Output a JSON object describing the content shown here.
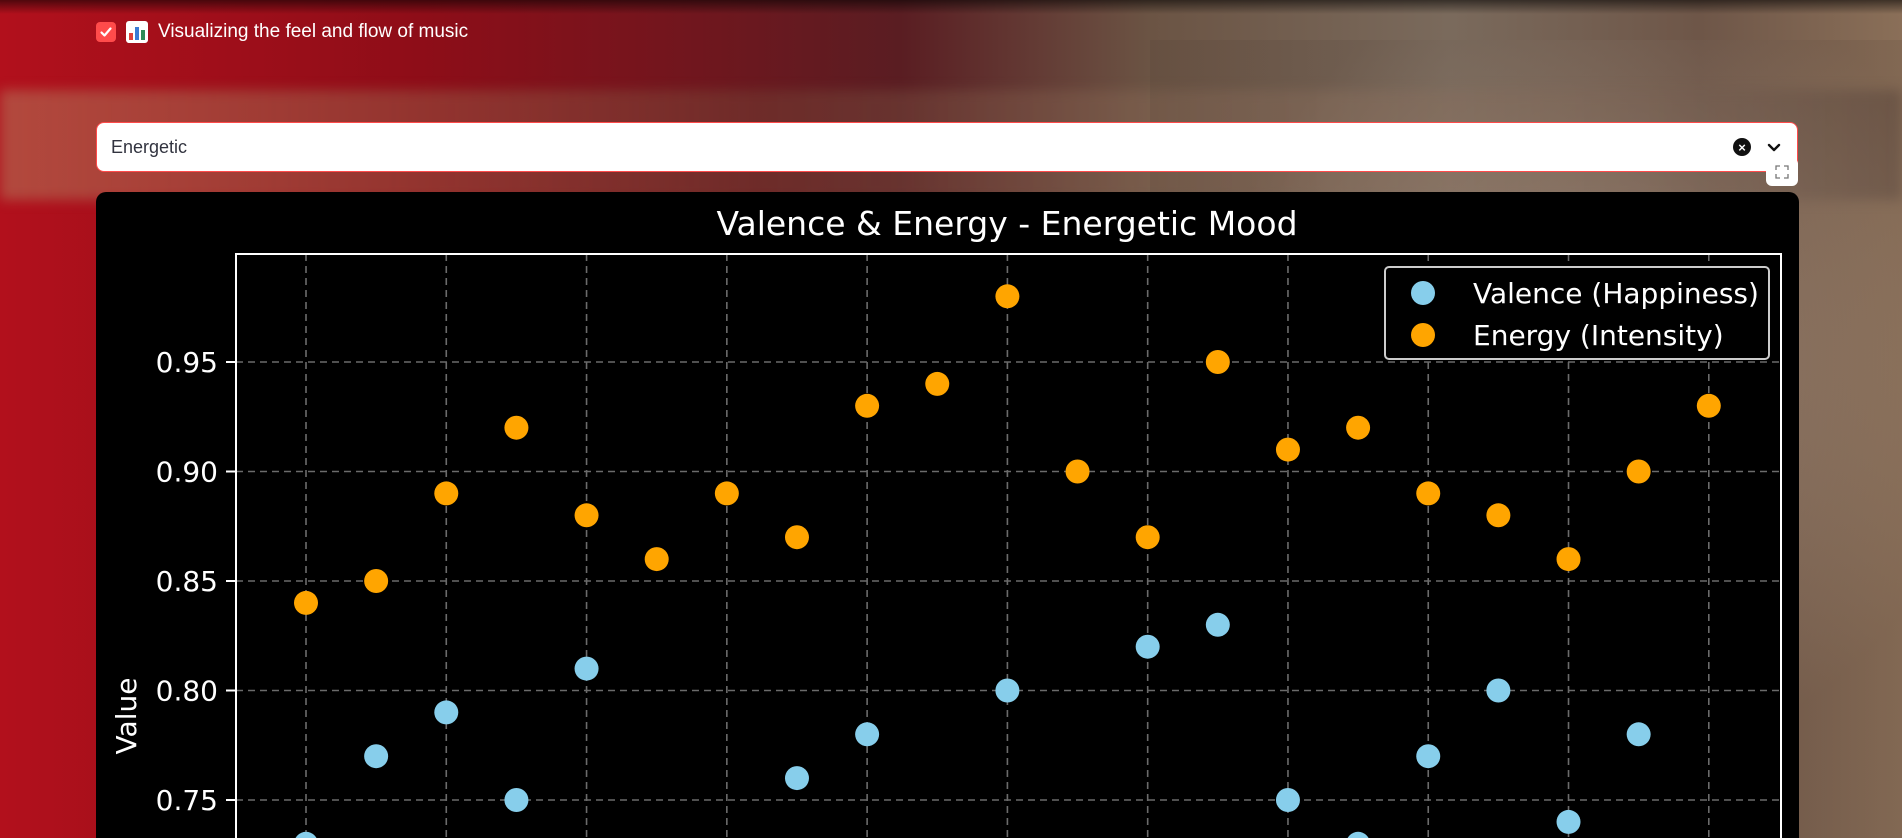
{
  "header": {
    "checkbox_checked": true,
    "icon": "bar-chart-icon",
    "label": "Visualizing the feel and flow of music"
  },
  "mood_select": {
    "value": "Energetic"
  },
  "colors": {
    "accent": "#ff4b4b",
    "valence": "#87ceeb",
    "energy": "#ffa500"
  },
  "chart_data": {
    "type": "scatter",
    "title": "Valence & Energy - Energetic Mood",
    "ylabel": "Value",
    "xlabel": "",
    "ylim": [
      0.72,
      0.99
    ],
    "y_ticks": [
      "0.75",
      "0.80",
      "0.85",
      "0.90",
      "0.95"
    ],
    "grid": true,
    "legend_position": "top-right",
    "x": [
      1,
      2,
      3,
      4,
      5,
      6,
      7,
      8,
      9,
      10,
      11,
      12,
      13,
      14,
      15,
      16,
      17,
      18,
      19,
      20,
      21,
      22
    ],
    "series": [
      {
        "name": "Valence (Happiness)",
        "color": "#87ceeb",
        "values": [
          0.73,
          0.77,
          0.79,
          0.75,
          0.81,
          null,
          null,
          0.76,
          0.78,
          null,
          0.8,
          null,
          0.82,
          0.83,
          0.75,
          0.73,
          0.77,
          0.8,
          0.74,
          0.78,
          null,
          null
        ]
      },
      {
        "name": "Energy (Intensity)",
        "color": "#ffa500",
        "values": [
          0.84,
          0.85,
          0.89,
          0.92,
          0.88,
          0.86,
          0.89,
          0.87,
          0.93,
          0.94,
          0.98,
          0.9,
          0.87,
          0.95,
          0.91,
          0.92,
          0.89,
          0.88,
          0.86,
          0.9,
          0.93,
          null
        ]
      }
    ]
  }
}
